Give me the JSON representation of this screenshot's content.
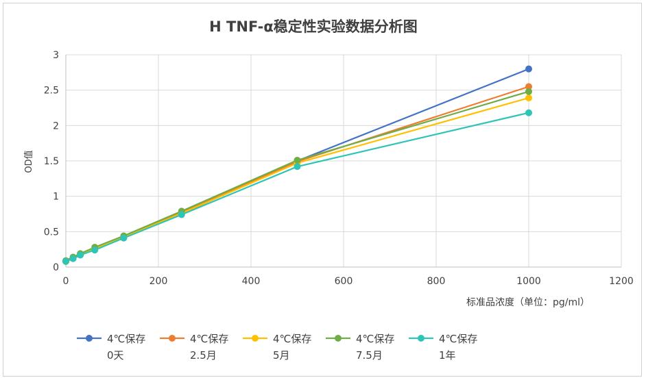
{
  "chart_data": {
    "type": "line",
    "title": "H TNF-α稳定性实验数据分析图",
    "xlabel": "标准品浓度（单位：pg/ml）",
    "ylabel": "OD值",
    "xlim": [
      0,
      1200
    ],
    "ylim": [
      0,
      3
    ],
    "x_ticks": [
      0,
      200,
      400,
      600,
      800,
      1000,
      1200
    ],
    "y_ticks": [
      0,
      0.5,
      1,
      1.5,
      2,
      2.5,
      3
    ],
    "x_tick_labels": [
      "0",
      "200",
      "400",
      "600",
      "800",
      "1000",
      "1200"
    ],
    "y_tick_labels": [
      "0",
      "0.5",
      "1",
      "1.5",
      "2",
      "2.5",
      "3"
    ],
    "grid": true,
    "legend_position": "bottom",
    "x": [
      0,
      15.6,
      31.25,
      62.5,
      125,
      250,
      500,
      1000
    ],
    "series": [
      {
        "name": "4℃保存\n0天",
        "color": "#4472C4",
        "values": [
          0.08,
          0.12,
          0.17,
          0.25,
          0.41,
          0.75,
          1.5,
          2.8
        ]
      },
      {
        "name": "4℃保存\n2.5月",
        "color": "#ED7D31",
        "values": [
          0.08,
          0.13,
          0.18,
          0.26,
          0.43,
          0.77,
          1.49,
          2.55
        ]
      },
      {
        "name": "4℃保存\n5月",
        "color": "#FFC000",
        "values": [
          0.08,
          0.13,
          0.18,
          0.26,
          0.42,
          0.76,
          1.47,
          2.39
        ]
      },
      {
        "name": "4℃保存\n7.5月",
        "color": "#70AD47",
        "values": [
          0.09,
          0.14,
          0.19,
          0.28,
          0.44,
          0.79,
          1.51,
          2.48
        ]
      },
      {
        "name": "4℃保存\n1年",
        "color": "#2EC4B6",
        "values": [
          0.08,
          0.12,
          0.17,
          0.24,
          0.41,
          0.74,
          1.42,
          2.18
        ]
      }
    ]
  }
}
